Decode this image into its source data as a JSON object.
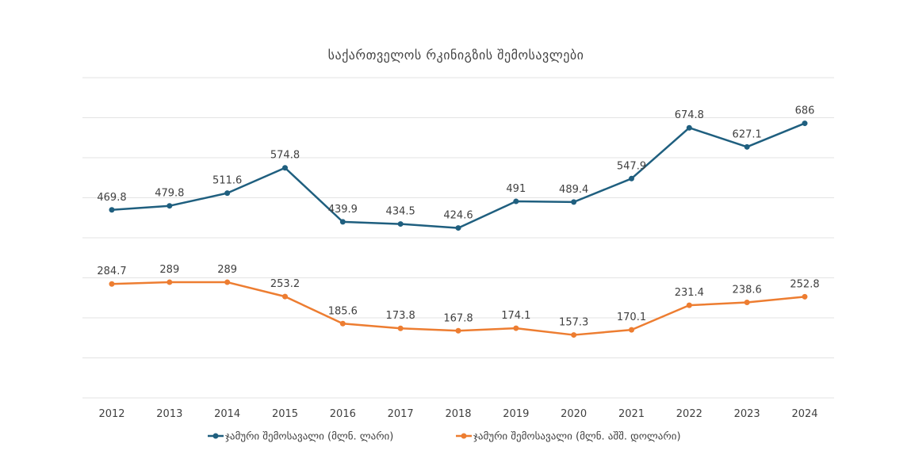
{
  "chart_data": {
    "type": "line",
    "title": "საქართველოს რკინიგზის შემოსავლები",
    "categories": [
      "2012",
      "2013",
      "2014",
      "2015",
      "2016",
      "2017",
      "2018",
      "2019",
      "2020",
      "2021",
      "2022",
      "2023",
      "2024"
    ],
    "ylim": [
      0,
      800
    ],
    "grid": true,
    "legend_position": "bottom",
    "series": [
      {
        "name": "ჯამური შემოსავალი (მლნ. ლარი)",
        "color": "#1f5f7f",
        "values": [
          469.8,
          479.8,
          511.6,
          574.8,
          439.9,
          434.5,
          424.6,
          491,
          489.4,
          547.9,
          674.8,
          627.1,
          686
        ],
        "labels": [
          "469.8",
          "479.8",
          "511.6",
          "574.8",
          "439.9",
          "434.5",
          "424.6",
          "491",
          "489.4",
          "547.9",
          "674.8",
          "627.1",
          "686"
        ]
      },
      {
        "name": "ჯამური შემოსავალი (მლნ. აშშ. დოლარი)",
        "color": "#ed7d31",
        "values": [
          284.7,
          289,
          289,
          253.2,
          185.6,
          173.8,
          167.8,
          174.1,
          157.3,
          170.1,
          231.4,
          238.6,
          252.8
        ],
        "labels": [
          "284.7",
          "289",
          "289",
          "253.2",
          "185.6",
          "173.8",
          "167.8",
          "174.1",
          "157.3",
          "170.1",
          "231.4",
          "238.6",
          "252.8"
        ]
      }
    ]
  }
}
